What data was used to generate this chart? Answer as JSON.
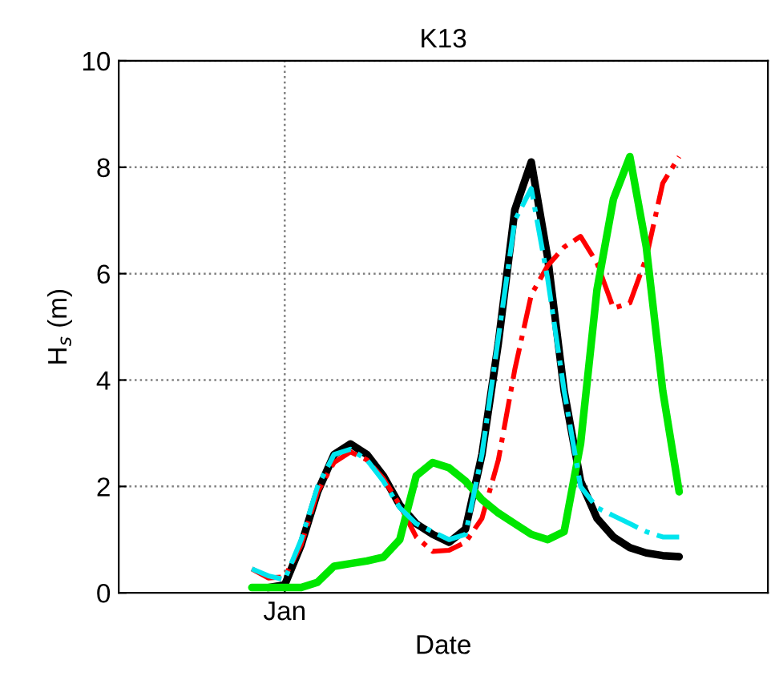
{
  "chart_data": {
    "type": "line",
    "title": "K13",
    "xlabel": "Date",
    "ylabel": "H$_{s}$ (m)",
    "categories": [
      null,
      null,
      "Jan",
      null,
      null,
      null,
      null,
      null,
      null,
      null,
      null,
      null,
      null,
      null,
      null,
      null,
      null,
      null,
      null,
      null,
      null,
      null,
      null,
      null,
      null,
      null,
      null
    ],
    "ylim": [
      0,
      10
    ],
    "yticks": [
      0,
      2,
      4,
      6,
      8,
      10
    ],
    "grid": true,
    "series": [
      {
        "color": "#000000",
        "line_style": "solid",
        "values": [
          null,
          0.1,
          0.15,
          0.9,
          1.9,
          2.6,
          2.8,
          2.6,
          2.2,
          1.65,
          1.3,
          1.1,
          0.95,
          1.2,
          2.6,
          4.7,
          7.2,
          8.1,
          6.3,
          3.8,
          2.1,
          1.4,
          1.05,
          0.85,
          0.75,
          0.7,
          0.68
        ]
      },
      {
        "color": "#ff0000",
        "line_style": "dashdot",
        "values": [
          0.45,
          0.28,
          0.3,
          0.9,
          1.9,
          2.45,
          2.65,
          2.5,
          2.15,
          1.65,
          1.05,
          0.78,
          0.8,
          0.95,
          1.4,
          2.5,
          4.2,
          5.6,
          6.15,
          6.5,
          6.7,
          6.2,
          5.35,
          5.45,
          6.3,
          7.7,
          8.2
        ]
      },
      {
        "color": "#00e600",
        "line_style": "solid",
        "values": [
          0.1,
          0.1,
          0.1,
          0.1,
          0.2,
          0.5,
          0.55,
          0.6,
          0.67,
          1.0,
          2.2,
          2.45,
          2.35,
          2.1,
          1.75,
          1.5,
          1.3,
          1.1,
          1.0,
          1.15,
          2.8,
          5.7,
          7.4,
          8.2,
          6.5,
          3.8,
          1.9
        ]
      },
      {
        "color": "#00e5ee",
        "line_style": "dashdot",
        "values": [
          0.45,
          0.32,
          0.25,
          1.0,
          2.0,
          2.6,
          2.7,
          2.5,
          2.1,
          1.6,
          1.3,
          1.15,
          1.0,
          1.1,
          2.6,
          4.8,
          7.0,
          7.6,
          5.9,
          3.8,
          2.0,
          1.6,
          1.45,
          1.3,
          1.15,
          1.05,
          1.05
        ]
      }
    ]
  }
}
